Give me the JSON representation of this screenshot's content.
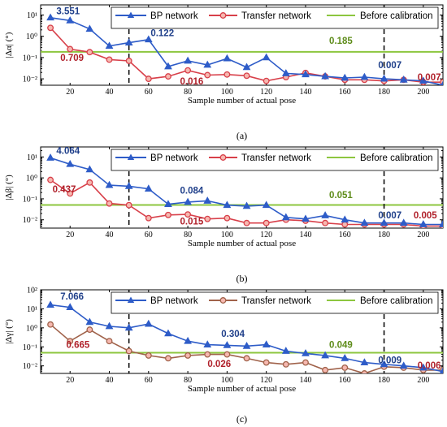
{
  "colors": {
    "bp": "#2E5CC8",
    "transfer_a": "#D8404A",
    "transfer_b": "#D8404A",
    "transfer_c": "#A0624A",
    "before": "#8DC63F",
    "ann_bp": "#1F3F8A",
    "ann_transfer": "#B0202A",
    "ann_before": "#5E8C1A"
  },
  "chart_data": [
    {
      "type": "line",
      "panel_label": "(a)",
      "xlabel": "Sample number of actual pose",
      "ylabel": "|Δα| (°)",
      "yscale": "log",
      "xlim": [
        5,
        210
      ],
      "ylim": [
        0.005,
        30
      ],
      "xticks": [
        20,
        40,
        60,
        80,
        100,
        120,
        140,
        160,
        180,
        200
      ],
      "yticks": [
        {
          "v": 0.01,
          "label": "10⁻²"
        },
        {
          "v": 0.1,
          "label": "10⁻¹"
        },
        {
          "v": 1,
          "label": "10⁰"
        },
        {
          "v": 10,
          "label": "10¹"
        }
      ],
      "vlines": [
        50,
        180
      ],
      "legend": [
        "BP network",
        "Transfer network",
        "Before calibration"
      ],
      "before_calibration": 0.185,
      "x": [
        10,
        20,
        30,
        40,
        50,
        60,
        70,
        80,
        90,
        100,
        110,
        120,
        130,
        140,
        150,
        160,
        170,
        180,
        190,
        200,
        210
      ],
      "series": [
        {
          "name": "BP network",
          "marker": "triangle",
          "color_key": "bp",
          "values": [
            7.5,
            5.5,
            2.2,
            0.35,
            0.5,
            0.7,
            0.038,
            0.07,
            0.045,
            0.09,
            0.035,
            0.1,
            0.018,
            0.016,
            0.013,
            0.011,
            0.012,
            0.01,
            0.009,
            0.008,
            0.005
          ]
        },
        {
          "name": "Transfer network",
          "marker": "circle",
          "color_key": "transfer_a",
          "values": [
            2.5,
            0.25,
            0.18,
            0.08,
            0.07,
            0.01,
            0.013,
            0.025,
            0.015,
            0.016,
            0.014,
            0.008,
            0.012,
            0.019,
            0.013,
            0.009,
            0.009,
            0.008,
            0.009,
            0.007,
            0.007
          ]
        }
      ],
      "annotations": [
        {
          "text": "3.551",
          "x": 19,
          "y": 11,
          "color_key": "ann_bp"
        },
        {
          "text": "0.709",
          "x": 21,
          "y": 0.07,
          "color_key": "ann_transfer"
        },
        {
          "text": "0.122",
          "x": 67,
          "y": 1.0,
          "color_key": "ann_bp"
        },
        {
          "text": "0.016",
          "x": 82,
          "y": 0.0055,
          "color_key": "ann_transfer"
        },
        {
          "text": "0.185",
          "x": 158,
          "y": 0.45,
          "color_key": "ann_before"
        },
        {
          "text": "0.007",
          "x": 183,
          "y": 0.032,
          "color_key": "ann_bp"
        },
        {
          "text": "0.007",
          "x": 203,
          "y": 0.0085,
          "color_key": "ann_transfer"
        }
      ]
    },
    {
      "type": "line",
      "panel_label": "(b)",
      "xlabel": "Sample number of actual pose",
      "ylabel": "|Δβ| (°)",
      "yscale": "log",
      "xlim": [
        5,
        210
      ],
      "ylim": [
        0.004,
        30
      ],
      "xticks": [
        20,
        40,
        60,
        80,
        100,
        120,
        140,
        160,
        180,
        200
      ],
      "yticks": [
        {
          "v": 0.01,
          "label": "10⁻²"
        },
        {
          "v": 0.1,
          "label": "10⁻¹"
        },
        {
          "v": 1,
          "label": "10⁰"
        },
        {
          "v": 10,
          "label": "10¹"
        }
      ],
      "vlines": [
        50,
        180
      ],
      "legend": [
        "BP network",
        "Transfer network",
        "Before calibration"
      ],
      "before_calibration": 0.051,
      "x": [
        10,
        20,
        30,
        40,
        50,
        60,
        70,
        80,
        90,
        100,
        110,
        120,
        130,
        140,
        150,
        160,
        170,
        180,
        190,
        200,
        210
      ],
      "series": [
        {
          "name": "BP network",
          "marker": "triangle",
          "color_key": "bp",
          "values": [
            9.0,
            4.5,
            2.5,
            0.45,
            0.4,
            0.3,
            0.055,
            0.07,
            0.08,
            0.05,
            0.045,
            0.05,
            0.013,
            0.011,
            0.016,
            0.01,
            0.007,
            0.007,
            0.007,
            0.006,
            0.006
          ]
        },
        {
          "name": "Transfer network",
          "marker": "circle",
          "color_key": "transfer_b",
          "values": [
            0.8,
            0.18,
            0.6,
            0.06,
            0.05,
            0.012,
            0.017,
            0.018,
            0.011,
            0.012,
            0.007,
            0.007,
            0.01,
            0.009,
            0.007,
            0.006,
            0.006,
            0.006,
            0.006,
            0.005,
            0.005
          ]
        }
      ],
      "annotations": [
        {
          "text": "4.064",
          "x": 19,
          "y": 14,
          "color_key": "ann_bp"
        },
        {
          "text": "0.437",
          "x": 17,
          "y": 0.2,
          "color_key": "ann_transfer"
        },
        {
          "text": "0.084",
          "x": 82,
          "y": 0.18,
          "color_key": "ann_bp"
        },
        {
          "text": "0.015",
          "x": 82,
          "y": 0.006,
          "color_key": "ann_transfer"
        },
        {
          "text": "0.051",
          "x": 158,
          "y": 0.11,
          "color_key": "ann_before"
        },
        {
          "text": "0.007",
          "x": 183,
          "y": 0.0115,
          "color_key": "ann_bp"
        },
        {
          "text": "0.005",
          "x": 201,
          "y": 0.0115,
          "color_key": "ann_transfer"
        }
      ]
    },
    {
      "type": "line",
      "panel_label": "(c)",
      "xlabel": "Sample number of actual pose",
      "ylabel": "|Δγ| (°)",
      "yscale": "log",
      "xlim": [
        5,
        210
      ],
      "ylim": [
        0.004,
        100
      ],
      "xticks": [
        20,
        40,
        60,
        80,
        100,
        120,
        140,
        160,
        180,
        200
      ],
      "yticks": [
        {
          "v": 0.01,
          "label": "10⁻²"
        },
        {
          "v": 0.1,
          "label": "10⁻¹"
        },
        {
          "v": 1,
          "label": "10⁰"
        },
        {
          "v": 10,
          "label": "10¹"
        },
        {
          "v": 100,
          "label": "10²"
        }
      ],
      "vlines": [
        50,
        180
      ],
      "legend": [
        "BP network",
        "Transfer network",
        "Before calibration"
      ],
      "before_calibration": 0.049,
      "x": [
        10,
        20,
        30,
        40,
        50,
        60,
        70,
        80,
        90,
        100,
        110,
        120,
        130,
        140,
        150,
        160,
        170,
        180,
        190,
        200,
        210
      ],
      "series": [
        {
          "name": "BP network",
          "marker": "triangle",
          "color_key": "bp",
          "values": [
            16,
            12,
            2.0,
            1.2,
            1.0,
            1.6,
            0.5,
            0.2,
            0.13,
            0.12,
            0.11,
            0.13,
            0.06,
            0.045,
            0.035,
            0.025,
            0.015,
            0.012,
            0.01,
            0.008,
            0.005
          ]
        },
        {
          "name": "Transfer network",
          "marker": "circle",
          "color_key": "transfer_c",
          "values": [
            1.5,
            0.2,
            0.8,
            0.2,
            0.06,
            0.035,
            0.025,
            0.035,
            0.04,
            0.04,
            0.025,
            0.015,
            0.012,
            0.015,
            0.006,
            0.008,
            0.004,
            0.009,
            0.008,
            0.006,
            0.006
          ]
        }
      ],
      "annotations": [
        {
          "text": "7.066",
          "x": 21,
          "y": 30,
          "color_key": "ann_bp"
        },
        {
          "text": "0.665",
          "x": 24,
          "y": 0.09,
          "color_key": "ann_transfer"
        },
        {
          "text": "0.304",
          "x": 103,
          "y": 0.33,
          "color_key": "ann_bp"
        },
        {
          "text": "0.026",
          "x": 96,
          "y": 0.009,
          "color_key": "ann_transfer"
        },
        {
          "text": "0.049",
          "x": 158,
          "y": 0.09,
          "color_key": "ann_before"
        },
        {
          "text": "0.009",
          "x": 183,
          "y": 0.014,
          "color_key": "ann_bp"
        },
        {
          "text": "0.006",
          "x": 203,
          "y": 0.0072,
          "color_key": "ann_transfer"
        }
      ]
    }
  ]
}
